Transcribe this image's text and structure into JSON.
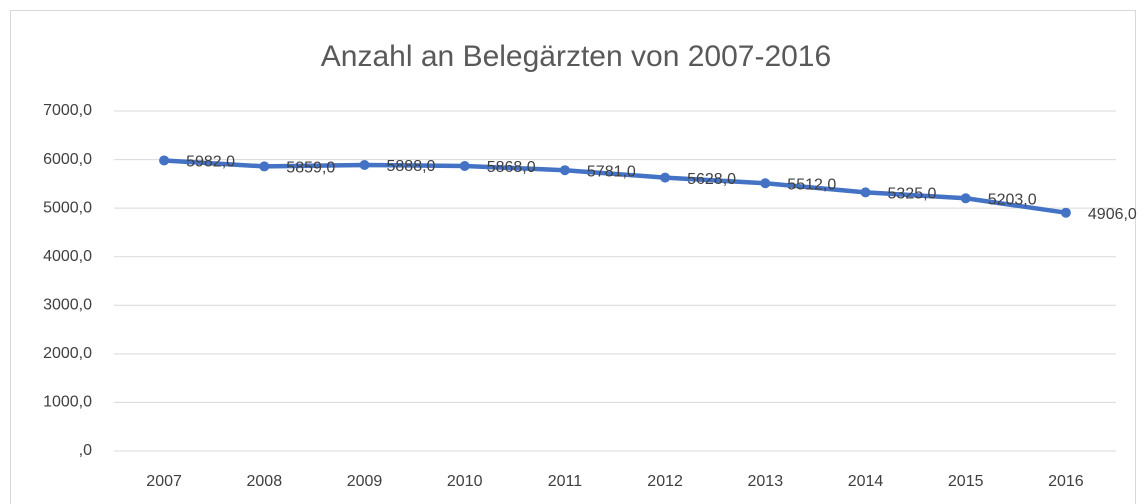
{
  "chart_data": {
    "type": "line",
    "title": "Anzahl an Belegärzten von 2007-2016",
    "categories": [
      "2007",
      "2008",
      "2009",
      "2010",
      "2011",
      "2012",
      "2013",
      "2014",
      "2015",
      "2016"
    ],
    "series": [
      {
        "name": "Anzahl",
        "color": "#4472c4",
        "values": [
          5982,
          5859,
          5888,
          5868,
          5781,
          5628,
          5512,
          5325,
          5203,
          4906
        ],
        "value_labels": [
          "5982,0",
          "5859,0",
          "5888,0",
          "5868,0",
          "5781,0",
          "5628,0",
          "5512,0",
          "5325,0",
          "5203,0",
          "4906,0"
        ]
      }
    ],
    "ylim": [
      0,
      7000
    ],
    "yticks": [
      {
        "value": 0,
        "label": ",0"
      },
      {
        "value": 1000,
        "label": "1000,0"
      },
      {
        "value": 2000,
        "label": "2000,0"
      },
      {
        "value": 3000,
        "label": "3000,0"
      },
      {
        "value": 4000,
        "label": "4000,0"
      },
      {
        "value": 5000,
        "label": "5000,0"
      },
      {
        "value": 6000,
        "label": "6000,0"
      },
      {
        "value": 7000,
        "label": "7000,0"
      }
    ],
    "grid": true
  }
}
